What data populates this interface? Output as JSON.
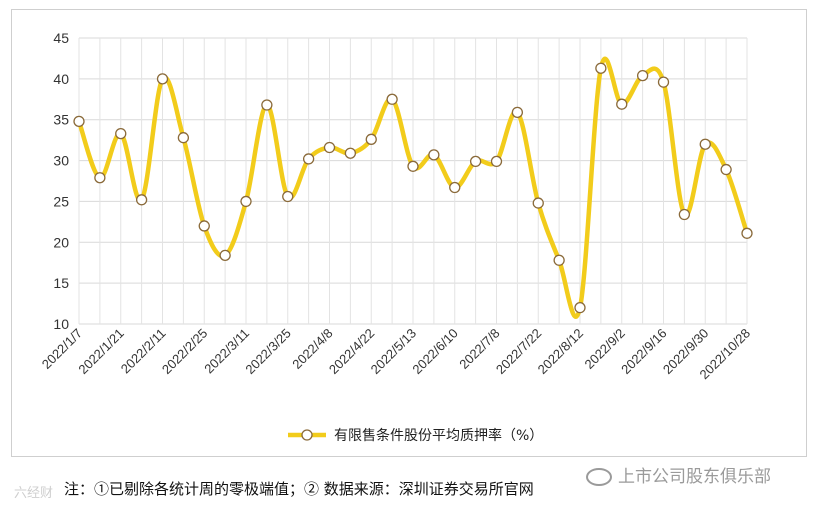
{
  "chart_data": {
    "type": "line",
    "title": "",
    "xlabel": "",
    "ylabel": "",
    "ylim": [
      10,
      45
    ],
    "yticks": [
      10,
      15,
      20,
      25,
      30,
      35,
      40,
      45
    ],
    "grid": true,
    "legend_position": "bottom",
    "x_tick_labels": [
      "2022/1/7",
      "2022/1/21",
      "2022/2/11",
      "2022/2/25",
      "2022/3/11",
      "2022/3/25",
      "2022/4/8",
      "2022/4/22",
      "2022/5/13",
      "2022/6/10",
      "2022/7/8",
      "2022/7/22",
      "2022/8/12",
      "2022/9/2",
      "2022/9/16",
      "2022/9/30",
      "2022/10/28"
    ],
    "x_tick_positions": [
      0,
      2,
      4,
      6,
      8,
      10,
      12,
      14,
      16,
      18,
      20,
      22,
      24,
      26,
      28,
      30,
      32
    ],
    "series": [
      {
        "name": "有限售条件股份平均质押率（%）",
        "color": "#f2cc1b",
        "marker_fill": "#ffffff",
        "marker_stroke": "#8a6a3a",
        "values": [
          34.8,
          27.9,
          33.3,
          25.2,
          40.0,
          32.8,
          22.0,
          18.4,
          25.0,
          36.8,
          25.6,
          30.2,
          31.6,
          30.9,
          32.6,
          37.5,
          29.3,
          30.7,
          26.7,
          29.9,
          29.9,
          35.9,
          24.8,
          17.8,
          12.0,
          41.3,
          36.9,
          40.4,
          39.6,
          23.4,
          32.0,
          28.9,
          21.1
        ]
      }
    ]
  },
  "note": "注：①已剔除各统计周的零极端值；② 数据来源：深圳证券交易所官网",
  "watermark_left": "六经财",
  "watermark_right": "上市公司股东俱乐部"
}
